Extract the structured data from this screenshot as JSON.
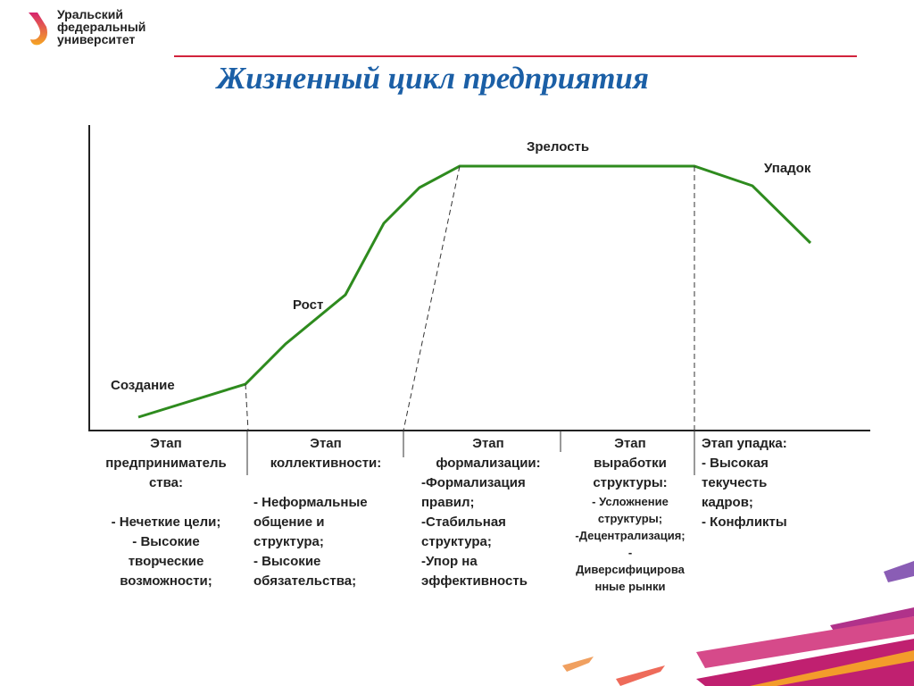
{
  "logo": {
    "lines": [
      "Уральский",
      "федеральный",
      "университет"
    ]
  },
  "title": "Жизненный цикл предприятия",
  "diagram": {
    "stage_labels": {
      "creation": "Создание",
      "growth": "Рост",
      "maturity": "Зрелость",
      "decline": "Упадок"
    },
    "curve_color": "#2e8b1e",
    "columns": [
      {
        "heading": [
          "Этап",
          "предприниматель",
          "ства:"
        ],
        "items": [
          "- Нечеткие цели;",
          "- Высокие",
          "творческие",
          "возможности;"
        ]
      },
      {
        "heading": [
          "Этап",
          "коллективности:"
        ],
        "items": [
          "- Неформальные",
          "общение и",
          "структура;",
          "- Высокие",
          "обязательства;"
        ]
      },
      {
        "heading": [
          "Этап",
          "формализации:"
        ],
        "items": [
          "-Формализация",
          "правил;",
          "-Стабильная",
          "структура;",
          "-Упор на",
          "эффективность"
        ]
      },
      {
        "heading": [
          "Этап",
          "выработки",
          "структуры:"
        ],
        "items": [
          "- Усложнение",
          "структуры;",
          "-Децентрализация;",
          "-",
          "Диверсифицирова",
          "нные рынки"
        ]
      },
      {
        "heading": [
          "Этап упадка:"
        ],
        "items": [
          "- Высокая",
          "текучесть",
          "кадров;",
          "- Конфликты"
        ]
      }
    ]
  }
}
